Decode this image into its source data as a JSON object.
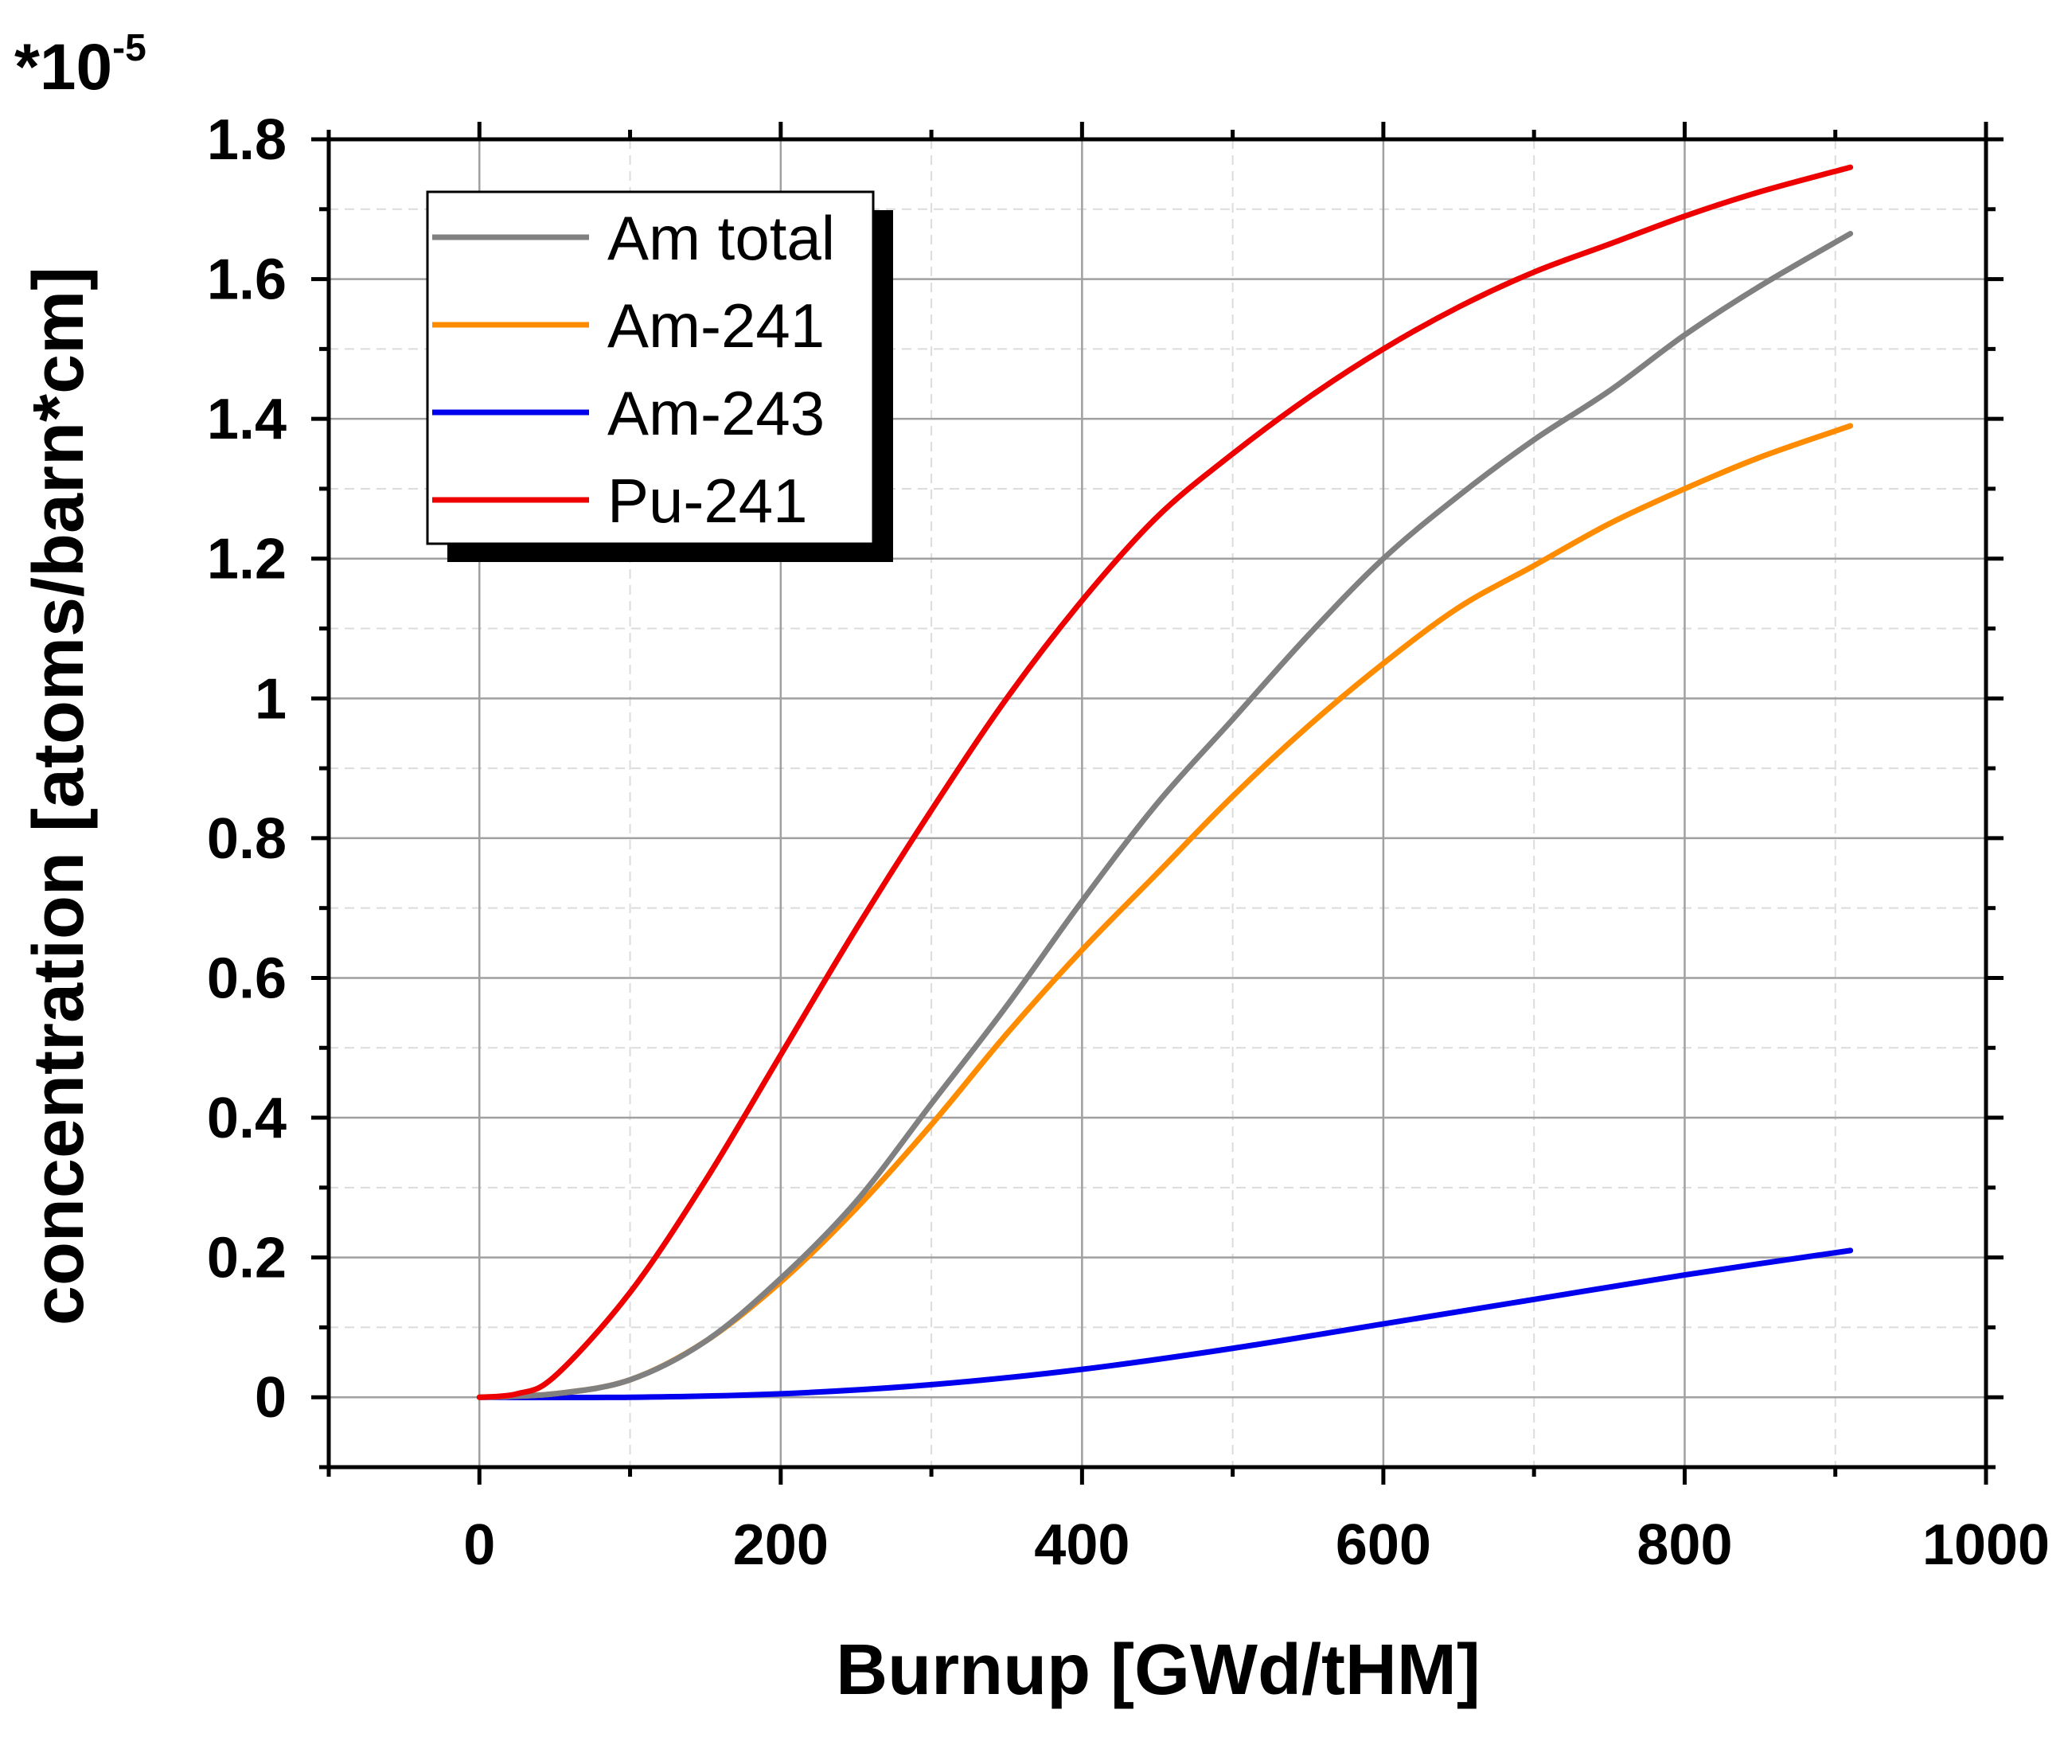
{
  "chart_data": {
    "type": "line",
    "title": "",
    "xlabel": "Burnup [GWd/tHM]",
    "ylabel": "concentration [atoms/barn*cm]",
    "y_multiplier": {
      "base": "*10",
      "exponent": "-5"
    },
    "xlim": [
      -100,
      1000
    ],
    "ylim": [
      -0.1,
      1.8
    ],
    "x_ticks": [
      0,
      200,
      400,
      600,
      800,
      1000
    ],
    "x_tick_labels": [
      "0",
      "200",
      "400",
      "600",
      "800",
      "1000"
    ],
    "y_ticks": [
      0,
      0.2,
      0.4,
      0.6,
      0.8,
      1,
      1.2,
      1.4,
      1.6,
      1.8
    ],
    "y_tick_labels": [
      "0",
      "0.2",
      "0.4",
      "0.6",
      "0.8",
      "1",
      "1.2",
      "1.4",
      "1.6",
      "1.8"
    ],
    "grid": true,
    "legend_position": "top-left",
    "series": [
      {
        "name": "Am total",
        "color": "#808080",
        "points": [
          [
            0,
            0
          ],
          [
            50,
            0.005
          ],
          [
            100,
            0.025
          ],
          [
            150,
            0.08
          ],
          [
            200,
            0.17
          ],
          [
            250,
            0.28
          ],
          [
            300,
            0.42
          ],
          [
            350,
            0.56
          ],
          [
            400,
            0.71
          ],
          [
            450,
            0.85
          ],
          [
            500,
            0.97
          ],
          [
            550,
            1.09
          ],
          [
            600,
            1.2
          ],
          [
            650,
            1.29
          ],
          [
            700,
            1.37
          ],
          [
            750,
            1.44
          ],
          [
            800,
            1.52
          ],
          [
            850,
            1.59
          ],
          [
            910,
            1.665
          ]
        ]
      },
      {
        "name": "Am-241",
        "color": "#FF8C00",
        "points": [
          [
            0,
            0
          ],
          [
            50,
            0.005
          ],
          [
            100,
            0.025
          ],
          [
            150,
            0.08
          ],
          [
            200,
            0.165
          ],
          [
            250,
            0.27
          ],
          [
            300,
            0.39
          ],
          [
            350,
            0.52
          ],
          [
            400,
            0.64
          ],
          [
            450,
            0.75
          ],
          [
            500,
            0.86
          ],
          [
            550,
            0.96
          ],
          [
            600,
            1.05
          ],
          [
            650,
            1.13
          ],
          [
            700,
            1.19
          ],
          [
            750,
            1.25
          ],
          [
            800,
            1.3
          ],
          [
            850,
            1.345
          ],
          [
            910,
            1.39
          ]
        ]
      },
      {
        "name": "Am-243",
        "color": "#0000EE",
        "points": [
          [
            0,
            0
          ],
          [
            100,
            0.0
          ],
          [
            200,
            0.005
          ],
          [
            300,
            0.018
          ],
          [
            400,
            0.04
          ],
          [
            500,
            0.07
          ],
          [
            600,
            0.105
          ],
          [
            700,
            0.14
          ],
          [
            800,
            0.175
          ],
          [
            910,
            0.21
          ]
        ]
      },
      {
        "name": "Pu-241",
        "color": "#EE0000",
        "points": [
          [
            0,
            0
          ],
          [
            25,
            0.005
          ],
          [
            50,
            0.03
          ],
          [
            100,
            0.15
          ],
          [
            150,
            0.31
          ],
          [
            200,
            0.49
          ],
          [
            250,
            0.67
          ],
          [
            300,
            0.84
          ],
          [
            350,
            1.0
          ],
          [
            400,
            1.14
          ],
          [
            450,
            1.26
          ],
          [
            500,
            1.35
          ],
          [
            550,
            1.43
          ],
          [
            600,
            1.5
          ],
          [
            650,
            1.56
          ],
          [
            700,
            1.61
          ],
          [
            750,
            1.65
          ],
          [
            800,
            1.69
          ],
          [
            850,
            1.725
          ],
          [
            910,
            1.76
          ]
        ]
      }
    ]
  }
}
